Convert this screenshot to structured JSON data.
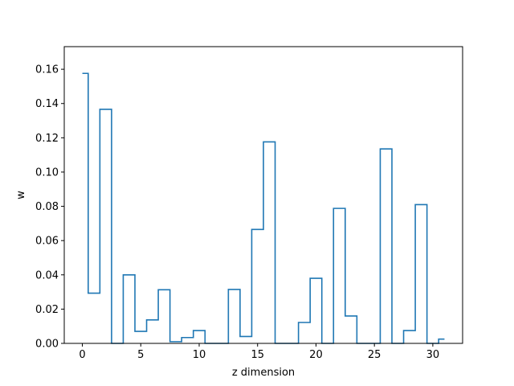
{
  "chart_data": {
    "type": "step",
    "title": "",
    "xlabel": "z dimension",
    "ylabel": "w",
    "xlim": [
      -1.55,
      32.55
    ],
    "ylim": [
      0,
      0.1732
    ],
    "xticks": [
      0,
      5,
      10,
      15,
      20,
      25,
      30
    ],
    "yticks": [
      0.0,
      0.02,
      0.04,
      0.06,
      0.08,
      0.1,
      0.12,
      0.14,
      0.16
    ],
    "ytick_labels": [
      "0.00",
      "0.02",
      "0.04",
      "0.06",
      "0.08",
      "0.10",
      "0.12",
      "0.14",
      "0.16"
    ],
    "grid": false,
    "legend": "none",
    "color": "#1f77b4",
    "series": [
      {
        "step": "mid",
        "x": [
          0,
          1,
          2,
          3,
          4,
          5,
          6,
          7,
          8,
          9,
          10,
          11,
          12,
          13,
          14,
          15,
          16,
          17,
          18,
          19,
          20,
          21,
          22,
          23,
          24,
          25,
          26,
          27,
          28,
          29,
          30,
          31
        ],
        "values": [
          0.1576,
          0.0293,
          0.1366,
          0.0,
          0.04,
          0.007,
          0.0137,
          0.0313,
          0.001,
          0.0034,
          0.0075,
          0.0,
          0.0,
          0.0315,
          0.004,
          0.0665,
          0.1176,
          0.0,
          0.0,
          0.0122,
          0.038,
          0.0,
          0.0788,
          0.016,
          0.0,
          0.0,
          0.1135,
          0.0,
          0.0075,
          0.081,
          0.0,
          0.0025
        ]
      }
    ]
  }
}
